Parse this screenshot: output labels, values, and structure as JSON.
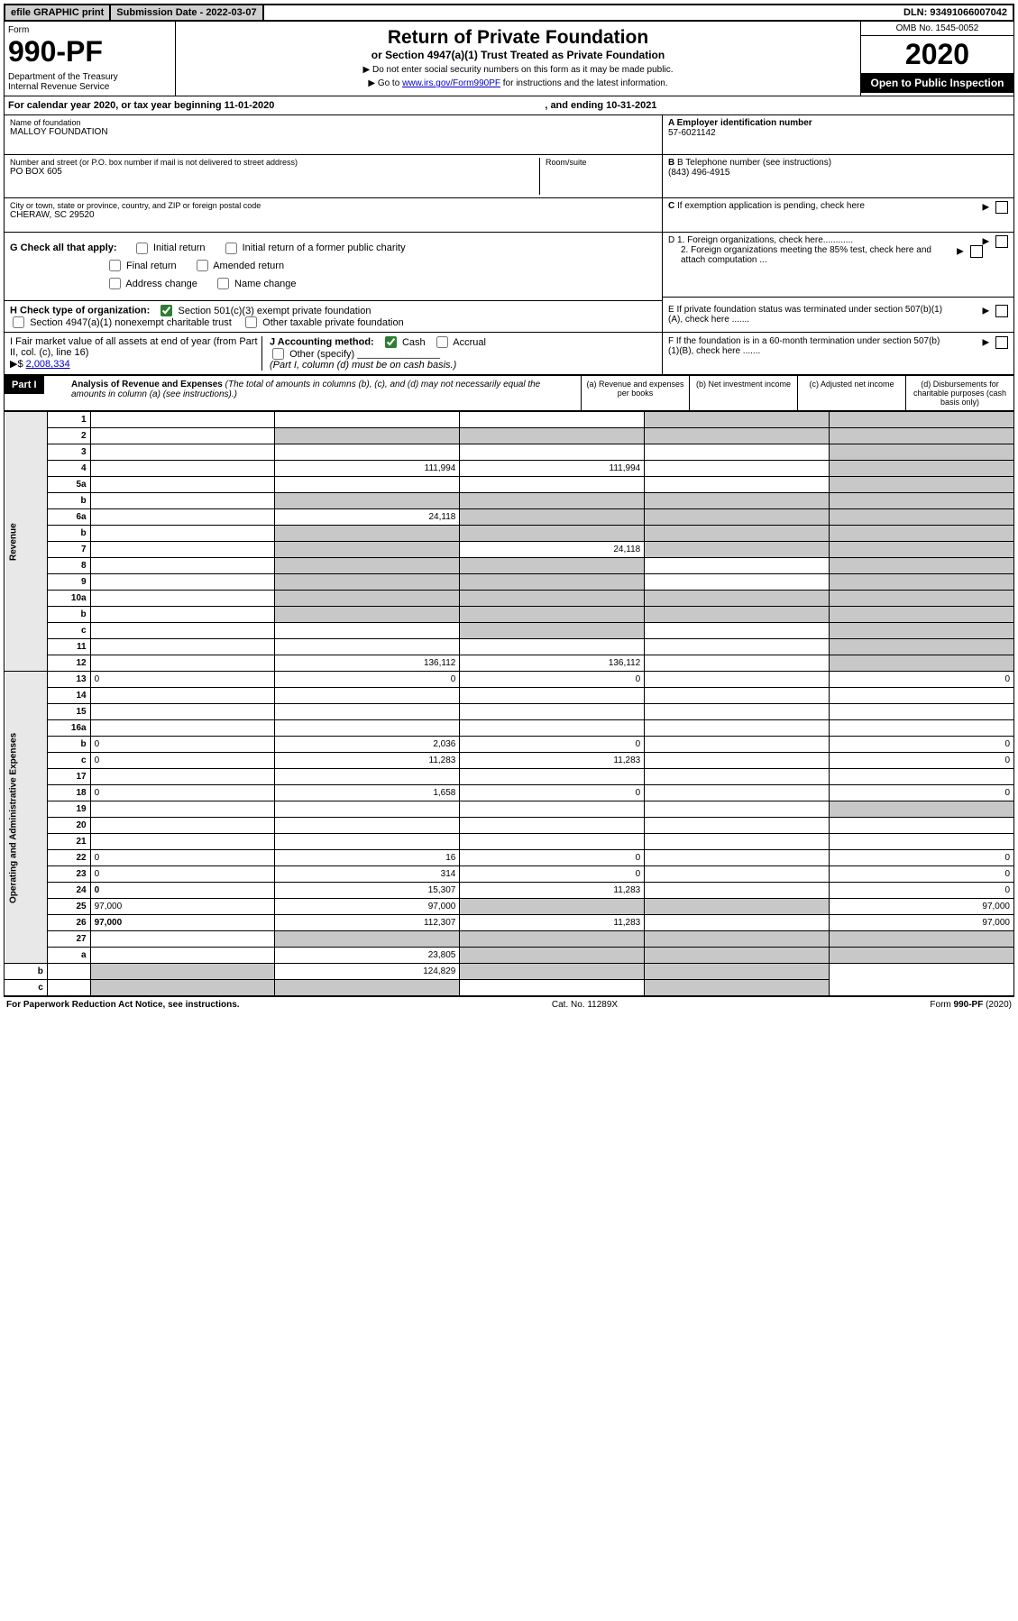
{
  "topbar": {
    "efile": "efile GRAPHIC print",
    "submission": "Submission Date - 2022-03-07",
    "dln": "DLN: 93491066007042"
  },
  "header": {
    "form_label": "Form",
    "form_number": "990-PF",
    "dept": "Department of the Treasury\nInternal Revenue Service",
    "title": "Return of Private Foundation",
    "subtitle": "or Section 4947(a)(1) Trust Treated as Private Foundation",
    "note1": "▶ Do not enter social security numbers on this form as it may be made public.",
    "note2": "▶ Go to ",
    "link": "www.irs.gov/Form990PF",
    "note2b": " for instructions and the latest information.",
    "omb": "OMB No. 1545-0052",
    "year": "2020",
    "open": "Open to Public Inspection"
  },
  "calyear": {
    "text1": "For calendar year 2020, or tax year beginning 11-01-2020",
    "text2": ", and ending 10-31-2021"
  },
  "info": {
    "name_label": "Name of foundation",
    "name": "MALLOY FOUNDATION",
    "addr_label": "Number and street (or P.O. box number if mail is not delivered to street address)",
    "addr": "PO BOX 605",
    "room_label": "Room/suite",
    "city_label": "City or town, state or province, country, and ZIP or foreign postal code",
    "city": "CHERAW, SC  29520",
    "a_label": "A Employer identification number",
    "a_val": "57-6021142",
    "b_label": "B Telephone number (see instructions)",
    "b_val": "(843) 496-4915",
    "c_label": "C If exemption application is pending, check here",
    "d1": "D 1. Foreign organizations, check here............",
    "d2": "2. Foreign organizations meeting the 85% test, check here and attach computation ...",
    "e_label": "E  If private foundation status was terminated under section 507(b)(1)(A), check here .......",
    "f_label": "F  If the foundation is in a 60-month termination under section 507(b)(1)(B), check here ......."
  },
  "g": {
    "label": "G Check all that apply:",
    "opts": [
      "Initial return",
      "Initial return of a former public charity",
      "Final return",
      "Amended return",
      "Address change",
      "Name change"
    ]
  },
  "h": {
    "label": "H Check type of organization:",
    "opt1": "Section 501(c)(3) exempt private foundation",
    "opt2": "Section 4947(a)(1) nonexempt charitable trust",
    "opt3": "Other taxable private foundation"
  },
  "i": {
    "label": "I Fair market value of all assets at end of year (from Part II, col. (c), line 16)",
    "arrow": "▶$",
    "val": "2,008,334"
  },
  "j": {
    "label": "J Accounting method:",
    "cash": "Cash",
    "accrual": "Accrual",
    "other": "Other (specify)",
    "note": "(Part I, column (d) must be on cash basis.)"
  },
  "part1": {
    "label": "Part I",
    "title": "Analysis of Revenue and Expenses",
    "desc": "(The total of amounts in columns (b), (c), and (d) may not necessarily equal the amounts in column (a) (see instructions).)",
    "cols": [
      "(a)  Revenue and expenses per books",
      "(b)  Net investment income",
      "(c)  Adjusted net income",
      "(d)  Disbursements for charitable purposes (cash basis only)"
    ]
  },
  "side_labels": {
    "revenue": "Revenue",
    "expenses": "Operating and Administrative Expenses"
  },
  "rows": [
    {
      "n": "1",
      "d": "",
      "a": "",
      "b": "",
      "c": "",
      "sh": [
        "c",
        "d"
      ]
    },
    {
      "n": "2",
      "d": "",
      "a": "",
      "b": "",
      "c": "",
      "sh": [
        "a",
        "b",
        "c",
        "d"
      ]
    },
    {
      "n": "3",
      "d": "",
      "a": "",
      "b": "",
      "c": "",
      "sh": [
        "d"
      ]
    },
    {
      "n": "4",
      "d": "",
      "a": "111,994",
      "b": "111,994",
      "c": "",
      "sh": [
        "d"
      ]
    },
    {
      "n": "5a",
      "d": "",
      "a": "",
      "b": "",
      "c": "",
      "sh": [
        "d"
      ]
    },
    {
      "n": "b",
      "d": "",
      "a": "",
      "b": "",
      "c": "",
      "sh": [
        "a",
        "b",
        "c",
        "d"
      ]
    },
    {
      "n": "6a",
      "d": "",
      "a": "24,118",
      "b": "",
      "c": "",
      "sh": [
        "b",
        "c",
        "d"
      ]
    },
    {
      "n": "b",
      "d": "",
      "a": "",
      "b": "",
      "c": "",
      "sh": [
        "a",
        "b",
        "c",
        "d"
      ]
    },
    {
      "n": "7",
      "d": "",
      "a": "",
      "b": "24,118",
      "c": "",
      "sh": [
        "a",
        "c",
        "d"
      ]
    },
    {
      "n": "8",
      "d": "",
      "a": "",
      "b": "",
      "c": "",
      "sh": [
        "a",
        "b",
        "d"
      ]
    },
    {
      "n": "9",
      "d": "",
      "a": "",
      "b": "",
      "c": "",
      "sh": [
        "a",
        "b",
        "d"
      ]
    },
    {
      "n": "10a",
      "d": "",
      "a": "",
      "b": "",
      "c": "",
      "sh": [
        "a",
        "b",
        "c",
        "d"
      ]
    },
    {
      "n": "b",
      "d": "",
      "a": "",
      "b": "",
      "c": "",
      "sh": [
        "a",
        "b",
        "c",
        "d"
      ]
    },
    {
      "n": "c",
      "d": "",
      "a": "",
      "b": "",
      "c": "",
      "sh": [
        "b",
        "d"
      ]
    },
    {
      "n": "11",
      "d": "",
      "a": "",
      "b": "",
      "c": "",
      "sh": [
        "d"
      ]
    },
    {
      "n": "12",
      "d": "",
      "a": "136,112",
      "b": "136,112",
      "c": "",
      "sh": [
        "d"
      ],
      "bold": true
    },
    {
      "n": "13",
      "d": "0",
      "a": "0",
      "b": "0",
      "c": "",
      "sh": []
    },
    {
      "n": "14",
      "d": "",
      "a": "",
      "b": "",
      "c": "",
      "sh": []
    },
    {
      "n": "15",
      "d": "",
      "a": "",
      "b": "",
      "c": "",
      "sh": []
    },
    {
      "n": "16a",
      "d": "",
      "a": "",
      "b": "",
      "c": "",
      "sh": []
    },
    {
      "n": "b",
      "d": "0",
      "a": "2,036",
      "b": "0",
      "c": "",
      "sh": []
    },
    {
      "n": "c",
      "d": "0",
      "a": "11,283",
      "b": "11,283",
      "c": "",
      "sh": []
    },
    {
      "n": "17",
      "d": "",
      "a": "",
      "b": "",
      "c": "",
      "sh": []
    },
    {
      "n": "18",
      "d": "0",
      "a": "1,658",
      "b": "0",
      "c": "",
      "sh": []
    },
    {
      "n": "19",
      "d": "",
      "a": "",
      "b": "",
      "c": "",
      "sh": [
        "d"
      ]
    },
    {
      "n": "20",
      "d": "",
      "a": "",
      "b": "",
      "c": "",
      "sh": []
    },
    {
      "n": "21",
      "d": "",
      "a": "",
      "b": "",
      "c": "",
      "sh": []
    },
    {
      "n": "22",
      "d": "0",
      "a": "16",
      "b": "0",
      "c": "",
      "sh": []
    },
    {
      "n": "23",
      "d": "0",
      "a": "314",
      "b": "0",
      "c": "",
      "sh": []
    },
    {
      "n": "24",
      "d": "0",
      "a": "15,307",
      "b": "11,283",
      "c": "",
      "sh": [],
      "bold": true
    },
    {
      "n": "25",
      "d": "97,000",
      "a": "97,000",
      "b": "",
      "c": "",
      "sh": [
        "b",
        "c"
      ]
    },
    {
      "n": "26",
      "d": "97,000",
      "a": "112,307",
      "b": "11,283",
      "c": "",
      "sh": [],
      "bold": true
    },
    {
      "n": "27",
      "d": "",
      "a": "",
      "b": "",
      "c": "",
      "sh": [
        "a",
        "b",
        "c",
        "d"
      ]
    },
    {
      "n": "a",
      "d": "",
      "a": "23,805",
      "b": "",
      "c": "",
      "sh": [
        "b",
        "c",
        "d"
      ],
      "bold": true
    },
    {
      "n": "b",
      "d": "",
      "a": "",
      "b": "124,829",
      "c": "",
      "sh": [
        "a",
        "c",
        "d"
      ],
      "bold": true
    },
    {
      "n": "c",
      "d": "",
      "a": "",
      "b": "",
      "c": "",
      "sh": [
        "a",
        "b",
        "d"
      ],
      "bold": true
    }
  ],
  "footer": {
    "left": "For Paperwork Reduction Act Notice, see instructions.",
    "mid": "Cat. No. 11289X",
    "right": "Form 990-PF (2020)"
  }
}
